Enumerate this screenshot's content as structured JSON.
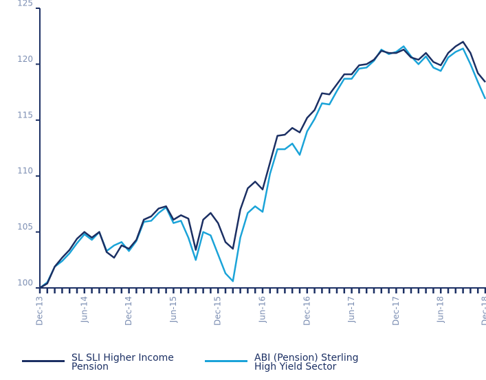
{
  "chart_data": {
    "type": "line",
    "categories": [
      "Dec-13",
      null,
      null,
      null,
      null,
      null,
      "Jun-14",
      null,
      null,
      null,
      null,
      null,
      "Dec-14",
      null,
      null,
      null,
      null,
      null,
      "Jun-15",
      null,
      null,
      null,
      null,
      null,
      "Dec-15",
      null,
      null,
      null,
      null,
      null,
      "Jun-16",
      null,
      null,
      null,
      null,
      null,
      "Dec-16",
      null,
      null,
      null,
      null,
      null,
      "Jun-17",
      null,
      null,
      null,
      null,
      null,
      "Dec-17",
      null,
      null,
      null,
      null,
      null,
      "Jun-18",
      null,
      null,
      null,
      null,
      null,
      "Dec-18"
    ],
    "series": [
      {
        "name": "SL SLI Higher Income Pension",
        "color": "#1b2f63",
        "values": [
          100.0,
          100.4,
          101.9,
          102.7,
          103.4,
          104.4,
          105.0,
          104.5,
          105.0,
          103.2,
          102.7,
          103.8,
          103.5,
          104.3,
          106.1,
          106.4,
          107.1,
          107.3,
          106.1,
          106.5,
          106.2,
          103.4,
          106.1,
          106.7,
          105.8,
          104.1,
          103.5,
          107.0,
          108.9,
          109.5,
          108.8,
          111.2,
          113.6,
          113.7,
          114.3,
          113.9,
          115.2,
          115.9,
          117.4,
          117.3,
          118.2,
          119.1,
          119.1,
          119.9,
          120.0,
          120.4,
          121.2,
          121.0,
          121.0,
          121.3,
          120.6,
          120.4,
          121.0,
          120.2,
          119.9,
          121.0,
          121.6,
          122.0,
          121.0,
          119.2,
          118.4
        ]
      },
      {
        "name": "ABI (Pension) Sterling High Yield Sector",
        "color": "#1aa3d8",
        "values": [
          100.0,
          100.5,
          101.9,
          102.4,
          103.1,
          104.0,
          104.8,
          104.3,
          105.0,
          103.3,
          103.8,
          104.1,
          103.3,
          104.2,
          105.9,
          106.0,
          106.7,
          107.2,
          105.8,
          106.0,
          104.5,
          102.5,
          105.0,
          104.7,
          103.0,
          101.3,
          100.6,
          104.5,
          106.7,
          107.3,
          106.8,
          110.2,
          112.4,
          112.4,
          112.9,
          111.9,
          114.0,
          115.1,
          116.5,
          116.4,
          117.6,
          118.7,
          118.7,
          119.6,
          119.7,
          120.3,
          121.3,
          120.9,
          121.1,
          121.6,
          120.7,
          120.0,
          120.7,
          119.7,
          119.4,
          120.6,
          121.1,
          121.4,
          120.0,
          118.4,
          116.9
        ]
      }
    ],
    "ylim": [
      100,
      125
    ],
    "yticks": [
      100,
      105,
      110,
      115,
      120,
      125
    ],
    "grid": false,
    "legend": "bottom"
  }
}
